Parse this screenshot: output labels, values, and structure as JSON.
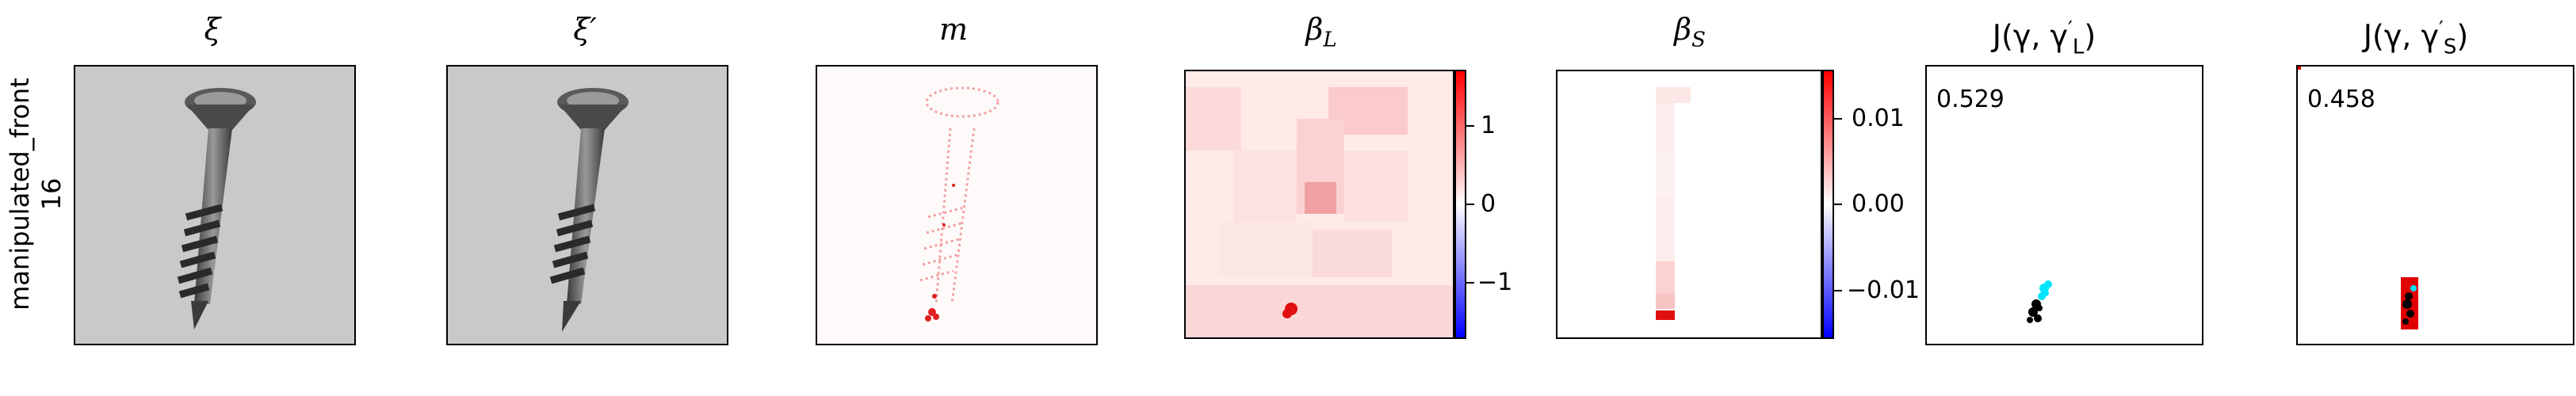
{
  "row_label": {
    "line1": "manipulated_front",
    "line2": "16"
  },
  "panels": {
    "xi": {
      "title": "ξ"
    },
    "xi_prime": {
      "title": "ξ′"
    },
    "m": {
      "title": "m"
    },
    "beta_L": {
      "title_main": "β",
      "title_sub": "L",
      "colorbar": {
        "ticks": [
          "1",
          "0",
          "−1"
        ],
        "range": [
          -1.7,
          1.7
        ]
      }
    },
    "beta_S": {
      "title_main": "β",
      "title_sub": "S",
      "colorbar": {
        "ticks": [
          "0.01",
          "0.00",
          "−0.01"
        ],
        "range": [
          -0.015,
          0.015
        ]
      }
    },
    "J_L": {
      "title_prefix": "J(γ, γ",
      "title_sup": "′",
      "title_sub": "L",
      "title_suffix": ")",
      "score": "0.529"
    },
    "J_S": {
      "title_prefix": "J(γ, γ",
      "title_sup": "′",
      "title_sub": "S",
      "title_suffix": ")",
      "score": "0.458"
    }
  },
  "colors": {
    "colorbar_high": "#ff0000",
    "colorbar_mid": "#ffffff",
    "colorbar_low": "#0000ff",
    "predicted": "#00e5ff",
    "ground_truth": "#000000",
    "box": "#e00000"
  }
}
